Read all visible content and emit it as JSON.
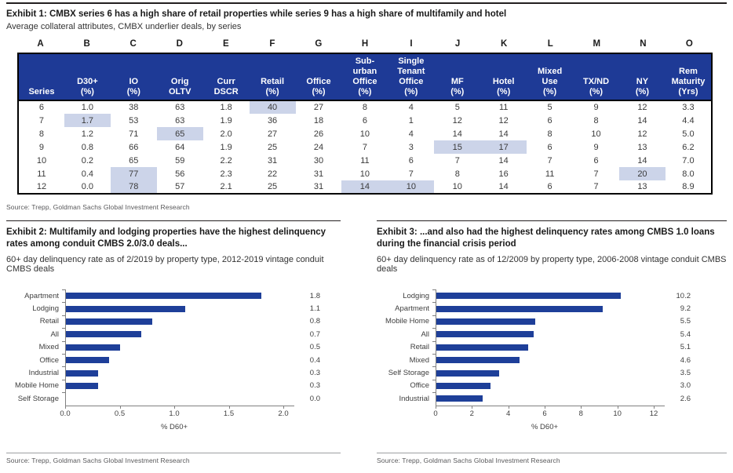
{
  "colors": {
    "header_blue": "#1e3a96",
    "highlight_blue": "#ccd4e9",
    "bar_blue": "#1e3f99",
    "axis_gray": "#808080",
    "source_gray": "#58585a"
  },
  "exhibit1": {
    "title": "Exhibit 1: CMBX series 6 has a high share of retail properties while series 9 has a high share of multifamily and hotel",
    "subtitle": "Average collateral attributes, CMBX underlier deals, by series",
    "column_letters": [
      "A",
      "B",
      "C",
      "D",
      "E",
      "F",
      "G",
      "H",
      "I",
      "J",
      "K",
      "L",
      "M",
      "N",
      "O"
    ],
    "table": {
      "headers": [
        "Series",
        "D30+\n(%)",
        "IO\n(%)",
        "Orig\nOLTV",
        "Curr\nDSCR",
        "Retail\n(%)",
        "Office\n(%)",
        "Sub-\nurban\nOffice\n(%)",
        "Single\nTenant\nOffice\n(%)",
        "MF\n(%)",
        "Hotel\n(%)",
        "Mixed\nUse\n(%)",
        "TX/ND\n(%)",
        "NY\n(%)",
        "Rem\nMaturity\n(Yrs)"
      ],
      "rows": [
        {
          "cells": [
            "6",
            "1.0",
            "38",
            "63",
            "1.8",
            "40",
            "27",
            "8",
            "4",
            "5",
            "11",
            "5",
            "9",
            "12",
            "3.3"
          ],
          "highlight": [
            5
          ]
        },
        {
          "cells": [
            "7",
            "1.7",
            "53",
            "63",
            "1.9",
            "36",
            "18",
            "6",
            "1",
            "12",
            "12",
            "6",
            "8",
            "14",
            "4.4"
          ],
          "highlight": [
            1
          ]
        },
        {
          "cells": [
            "8",
            "1.2",
            "71",
            "65",
            "2.0",
            "27",
            "26",
            "10",
            "4",
            "14",
            "14",
            "8",
            "10",
            "12",
            "5.0"
          ],
          "highlight": [
            3
          ]
        },
        {
          "cells": [
            "9",
            "0.8",
            "66",
            "64",
            "1.9",
            "25",
            "24",
            "7",
            "3",
            "15",
            "17",
            "6",
            "9",
            "13",
            "6.2"
          ],
          "highlight": [
            9,
            10
          ]
        },
        {
          "cells": [
            "10",
            "0.2",
            "65",
            "59",
            "2.2",
            "31",
            "30",
            "11",
            "6",
            "7",
            "14",
            "7",
            "6",
            "14",
            "7.0"
          ],
          "highlight": []
        },
        {
          "cells": [
            "11",
            "0.4",
            "77",
            "56",
            "2.3",
            "22",
            "31",
            "10",
            "7",
            "8",
            "16",
            "11",
            "7",
            "20",
            "8.0"
          ],
          "highlight": [
            2,
            13
          ]
        },
        {
          "cells": [
            "12",
            "0.0",
            "78",
            "57",
            "2.1",
            "25",
            "31",
            "14",
            "10",
            "10",
            "14",
            "6",
            "7",
            "13",
            "8.9"
          ],
          "highlight": [
            2,
            7,
            8
          ]
        }
      ]
    },
    "source": "Source: Trepp, Goldman Sachs Global Investment Research"
  },
  "exhibit2": {
    "title": "Exhibit 2: Multifamily and lodging properties have the highest delinquency rates among conduit CMBS 2.0/3.0 deals...",
    "subtitle": "60+ day delinquency rate as of 2/2019 by property type, 2012-2019 vintage conduit CMBS deals",
    "source": "Source: Trepp, Goldman Sachs Global Investment Research"
  },
  "exhibit3": {
    "title": "Exhibit 3: ...and also had the highest delinquency rates among CMBS 1.0 loans during the financial crisis period",
    "subtitle": "60+ day delinquency rate as of 12/2009 by property type, 2006-2008 vintage conduit CMBS deals",
    "source": "Source: Trepp, Goldman Sachs Global Investment Research"
  },
  "chart_data": [
    {
      "exhibit": "2",
      "type": "bar",
      "orientation": "horizontal",
      "categories": [
        "Apartment",
        "Lodging",
        "Retail",
        "All",
        "Mixed",
        "Office",
        "Industrial",
        "Mobile Home",
        "Self Storage"
      ],
      "values": [
        1.8,
        1.1,
        0.8,
        0.7,
        0.5,
        0.4,
        0.3,
        0.3,
        0.0
      ],
      "value_labels": [
        "1.8",
        "1.1",
        "0.8",
        "0.7",
        "0.5",
        "0.4",
        "0.3",
        "0.3",
        "0.0"
      ],
      "xlabel": "% D60+",
      "xlim": [
        0,
        2
      ],
      "xticks": [
        0,
        0.5,
        1,
        1.5,
        2
      ],
      "xtick_labels": [
        "0.0",
        "0.5",
        "1.0",
        "1.5",
        "2.0"
      ],
      "grid": false,
      "legend": false
    },
    {
      "exhibit": "3",
      "type": "bar",
      "orientation": "horizontal",
      "categories": [
        "Lodging",
        "Apartment",
        "Mobile Home",
        "All",
        "Retail",
        "Mixed",
        "Self Storage",
        "Office",
        "Industrial"
      ],
      "values": [
        10.2,
        9.2,
        5.5,
        5.4,
        5.1,
        4.6,
        3.5,
        3.0,
        2.6
      ],
      "value_labels": [
        "10.2",
        "9.2",
        "5.5",
        "5.4",
        "5.1",
        "4.6",
        "3.5",
        "3.0",
        "2.6"
      ],
      "xlabel": "% D60+",
      "xlim": [
        0,
        12
      ],
      "xticks": [
        0,
        2,
        4,
        6,
        8,
        10,
        12
      ],
      "xtick_labels": [
        "0",
        "2",
        "4",
        "6",
        "8",
        "10",
        "12"
      ],
      "grid": false,
      "legend": false
    }
  ]
}
